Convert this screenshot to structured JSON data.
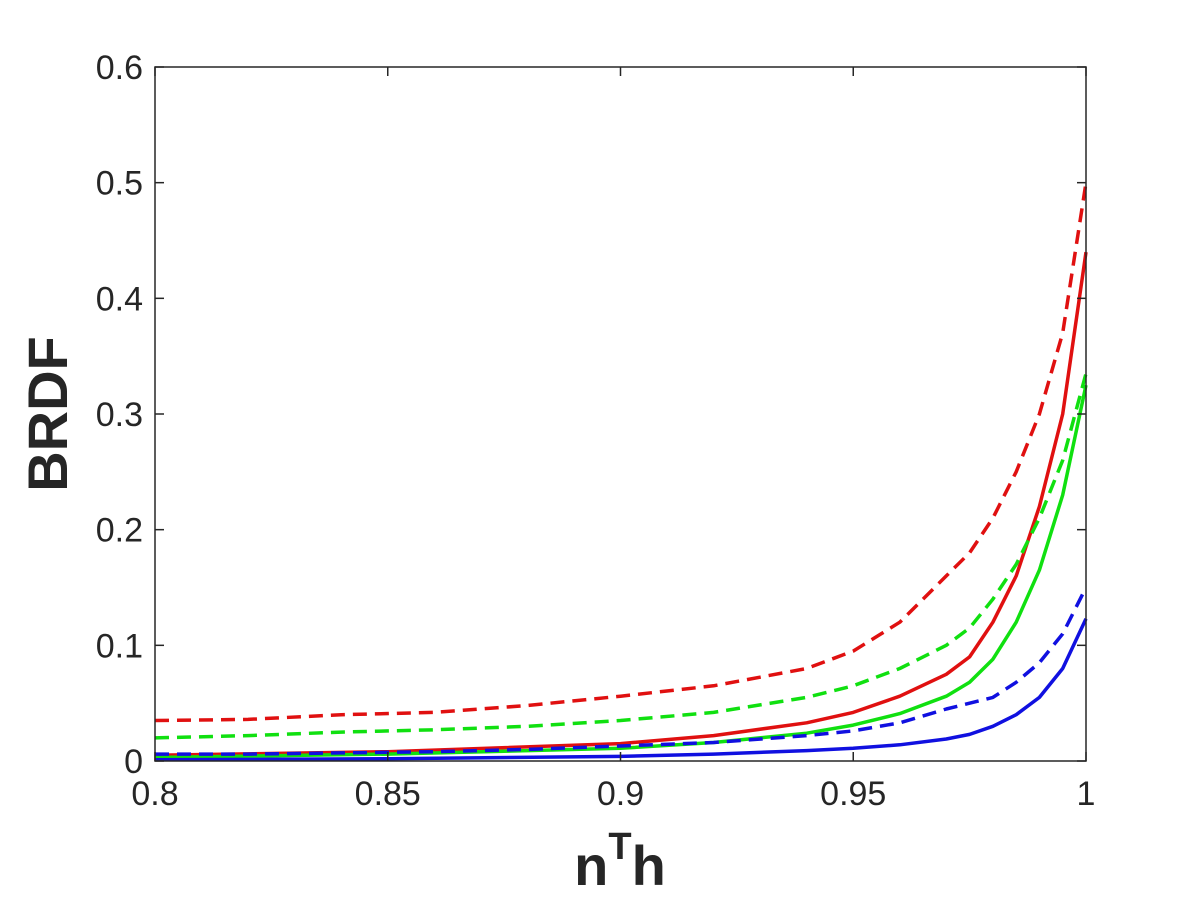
{
  "chart_data": {
    "type": "line",
    "title": "",
    "xlabel": "n",
    "xlabel_superscript": "T",
    "xlabel_suffix": "h",
    "ylabel": "BRDF",
    "xlim": [
      0.8,
      1.0
    ],
    "ylim": [
      0,
      0.6
    ],
    "grid": false,
    "x_ticks": [
      0.8,
      0.85,
      0.9,
      0.95,
      1.0
    ],
    "x_tick_labels": [
      "0.8",
      "0.85",
      "0.9",
      "0.95",
      "1"
    ],
    "y_ticks": [
      0,
      0.1,
      0.2,
      0.3,
      0.4,
      0.5,
      0.6
    ],
    "y_tick_labels": [
      "0",
      "0.1",
      "0.2",
      "0.3",
      "0.4",
      "0.5",
      "0.6"
    ],
    "series": [
      {
        "color": "#e01010",
        "style": "solid",
        "x": [
          0.8,
          0.85,
          0.9,
          0.92,
          0.94,
          0.95,
          0.96,
          0.97,
          0.975,
          0.98,
          0.985,
          0.99,
          0.995,
          1.0
        ],
        "y": [
          0.005,
          0.008,
          0.015,
          0.022,
          0.033,
          0.042,
          0.056,
          0.075,
          0.09,
          0.12,
          0.16,
          0.22,
          0.3,
          0.44
        ]
      },
      {
        "color": "#10e010",
        "style": "solid",
        "x": [
          0.8,
          0.85,
          0.9,
          0.92,
          0.94,
          0.95,
          0.96,
          0.97,
          0.975,
          0.98,
          0.985,
          0.99,
          0.995,
          1.0
        ],
        "y": [
          0.003,
          0.006,
          0.011,
          0.016,
          0.024,
          0.031,
          0.041,
          0.056,
          0.068,
          0.088,
          0.12,
          0.165,
          0.23,
          0.325
        ]
      },
      {
        "color": "#1010e0",
        "style": "solid",
        "x": [
          0.8,
          0.85,
          0.9,
          0.92,
          0.94,
          0.95,
          0.96,
          0.97,
          0.975,
          0.98,
          0.985,
          0.99,
          0.995,
          1.0
        ],
        "y": [
          0.001,
          0.002,
          0.004,
          0.006,
          0.009,
          0.011,
          0.014,
          0.019,
          0.023,
          0.03,
          0.04,
          0.055,
          0.08,
          0.123
        ]
      },
      {
        "color": "#e01010",
        "style": "dashed",
        "x": [
          0.8,
          0.82,
          0.84,
          0.86,
          0.88,
          0.9,
          0.92,
          0.94,
          0.95,
          0.96,
          0.97,
          0.975,
          0.98,
          0.985,
          0.99,
          0.995,
          1.0
        ],
        "y": [
          0.035,
          0.036,
          0.04,
          0.042,
          0.048,
          0.056,
          0.065,
          0.08,
          0.095,
          0.12,
          0.16,
          0.18,
          0.21,
          0.25,
          0.3,
          0.37,
          0.5
        ]
      },
      {
        "color": "#10e010",
        "style": "dashed",
        "x": [
          0.8,
          0.82,
          0.84,
          0.86,
          0.88,
          0.9,
          0.92,
          0.94,
          0.95,
          0.96,
          0.97,
          0.975,
          0.98,
          0.985,
          0.99,
          0.995,
          1.0
        ],
        "y": [
          0.02,
          0.022,
          0.025,
          0.027,
          0.03,
          0.035,
          0.042,
          0.055,
          0.065,
          0.08,
          0.1,
          0.115,
          0.14,
          0.17,
          0.21,
          0.26,
          0.335
        ]
      },
      {
        "color": "#1010e0",
        "style": "dashed",
        "x": [
          0.8,
          0.82,
          0.84,
          0.86,
          0.88,
          0.9,
          0.92,
          0.94,
          0.95,
          0.96,
          0.97,
          0.975,
          0.98,
          0.985,
          0.99,
          0.995,
          1.0
        ],
        "y": [
          0.006,
          0.006,
          0.007,
          0.008,
          0.01,
          0.013,
          0.016,
          0.022,
          0.026,
          0.033,
          0.045,
          0.05,
          0.055,
          0.068,
          0.085,
          0.11,
          0.15
        ]
      }
    ]
  }
}
